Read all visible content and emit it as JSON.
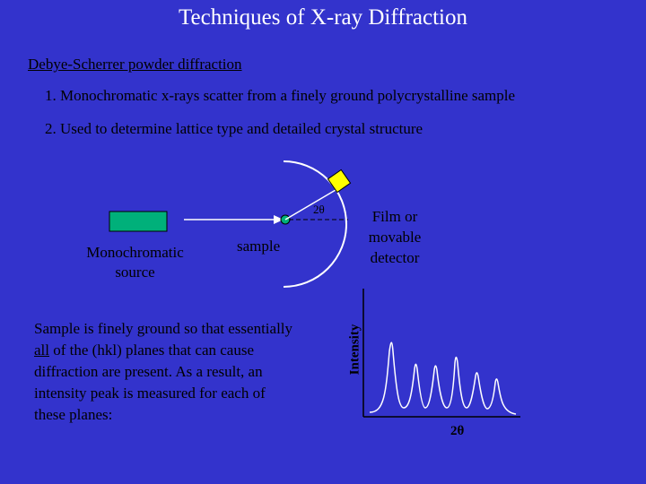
{
  "slide": {
    "title": "Techniques of X-ray Diffraction",
    "subtitle": "Debye-Scherrer powder diffraction",
    "items": [
      "1.  Monochromatic x-rays scatter from a finely ground polycrystalline sample",
      "2.  Used to determine lattice type and detailed crystal structure"
    ]
  },
  "diagram": {
    "source_label_line1": "Monochromatic",
    "source_label_line2": "source",
    "sample_label": "sample",
    "angle_label": "2θ",
    "detector_label_line1": "Film or",
    "detector_label_line2": "movable",
    "detector_label_line3": "detector",
    "colors": {
      "background": "#3333cc",
      "source": "#00b07a",
      "sample": "#00b07a",
      "detector": "#ffff00",
      "lines": "#ffffff"
    }
  },
  "description": {
    "before_underline": "Sample is finely ground so that essentially ",
    "underlined": "all",
    "after_underline": " of the (hkl) planes that can cause diffraction are present.  As a result, an intensity peak is measured for each of these planes:"
  },
  "pattern": {
    "ylabel": "Intensity",
    "xlabel": "2θ"
  }
}
